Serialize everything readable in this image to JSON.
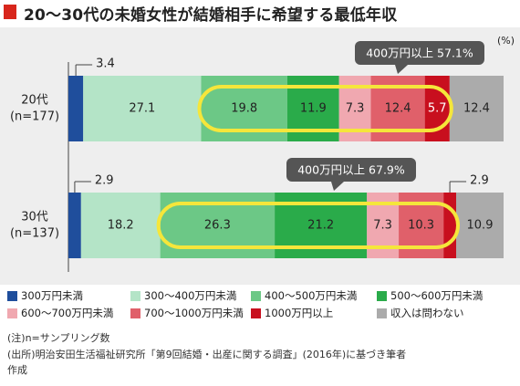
{
  "title": "20〜30代の未婚女性が結婚相手に希望する最低年収",
  "unit": "(%)",
  "legend": [
    {
      "label": "300万円未満",
      "color": "#1f4e9c"
    },
    {
      "label": "300〜400万円未満",
      "color": "#b4e4c7"
    },
    {
      "label": "400〜500万円未満",
      "color": "#6cc886"
    },
    {
      "label": "500〜600万円未満",
      "color": "#2aab4a"
    },
    {
      "label": "600〜700万円未満",
      "color": "#f0a8b0"
    },
    {
      "label": "700〜1000万円未満",
      "color": "#e0606a"
    },
    {
      "label": "1000万円以上",
      "color": "#c80f1e"
    },
    {
      "label": "収入は問わない",
      "color": "#ababab"
    }
  ],
  "notes": {
    "n_note": "(注)n=サンプリング数",
    "source1": "(出所)明治安田生活福祉研究所「第9回結婚・出産に関する調査」(2016年)に基づき筆者",
    "source2": "作成"
  },
  "chart_data": {
    "type": "bar",
    "stacked": true,
    "orientation": "horizontal",
    "categories": [
      "300万円未満",
      "300〜400万円未満",
      "400〜500万円未満",
      "500〜600万円未満",
      "600〜700万円未満",
      "700〜1000万円未満",
      "1000万円以上",
      "収入は問わない"
    ],
    "rows": [
      {
        "label_line1": "20代",
        "label_line2": "(n=177)",
        "values": [
          3.4,
          27.1,
          19.8,
          11.9,
          7.3,
          12.4,
          5.7,
          12.4
        ],
        "value_labels": [
          "3.4",
          "27.1",
          "19.8",
          "11.9",
          "7.3",
          "12.4",
          "5.7",
          "12.4"
        ],
        "callout": "400万円以上 57.1%",
        "callout_value": 57.1
      },
      {
        "label_line1": "30代",
        "label_line2": "(n=137)",
        "values": [
          2.9,
          18.2,
          26.3,
          21.2,
          7.3,
          10.3,
          2.9,
          10.9
        ],
        "value_labels": [
          "2.9",
          "18.2",
          "26.3",
          "21.2",
          "7.3",
          "10.3",
          "2.9",
          "10.9"
        ],
        "callout": "400万円以上 67.9%",
        "callout_value": 67.9
      }
    ],
    "xlim": [
      0,
      100
    ],
    "highlight_color": "#f5e63b",
    "callout_color": "#555555"
  }
}
